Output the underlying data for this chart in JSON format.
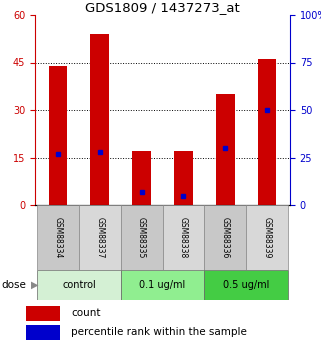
{
  "title": "GDS1809 / 1437273_at",
  "samples": [
    "GSM88334",
    "GSM88337",
    "GSM88335",
    "GSM88338",
    "GSM88336",
    "GSM88339"
  ],
  "bar_heights": [
    44,
    54,
    17,
    17,
    35,
    46
  ],
  "percentile_values": [
    27,
    28,
    7,
    5,
    30,
    50
  ],
  "left_ylim": [
    0,
    60
  ],
  "right_ylim": [
    0,
    100
  ],
  "left_yticks": [
    0,
    15,
    30,
    45,
    60
  ],
  "right_yticks": [
    0,
    25,
    50,
    75,
    100
  ],
  "right_yticklabels": [
    "0",
    "25",
    "50",
    "75",
    "100%"
  ],
  "bar_color": "#cc0000",
  "marker_color": "#0000cc",
  "groups": [
    {
      "label": "control",
      "indices": [
        0,
        1
      ],
      "color": "#d4f0d4"
    },
    {
      "label": "0.1 ug/ml",
      "indices": [
        2,
        3
      ],
      "color": "#90ee90"
    },
    {
      "label": "0.5 ug/ml",
      "indices": [
        4,
        5
      ],
      "color": "#44cc44"
    }
  ],
  "dose_label": "dose",
  "legend_count_label": "count",
  "legend_percentile_label": "percentile rank within the sample",
  "bar_width": 0.45,
  "sample_box_color_odd": "#c8c8c8",
  "sample_box_color_even": "#d8d8d8",
  "bg_color": "#ffffff"
}
